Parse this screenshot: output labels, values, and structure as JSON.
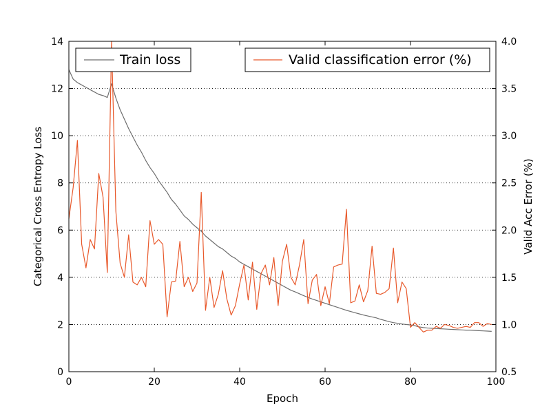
{
  "chart_data": {
    "type": "line",
    "xlabel": "Epoch",
    "ylabel_left": "Categorical Cross Entropy Loss",
    "ylabel_right": "Valid Acc Error (%)",
    "xlim": [
      0,
      100
    ],
    "ylim_left": [
      0,
      14
    ],
    "ylim_right": [
      0.5,
      4.0
    ],
    "xticks": [
      0,
      20,
      40,
      60,
      80,
      100
    ],
    "yticks_left": [
      0,
      2,
      4,
      6,
      8,
      10,
      12,
      14
    ],
    "yticks_right": [
      0.5,
      1.0,
      1.5,
      2.0,
      2.5,
      3.0,
      3.5,
      4.0
    ],
    "xtick_labels": [
      "0",
      "20",
      "40",
      "60",
      "80",
      "100"
    ],
    "ytick_labels_left": [
      "0",
      "2",
      "4",
      "6",
      "8",
      "10",
      "12",
      "14"
    ],
    "ytick_labels_right": [
      "0.5",
      "1.0",
      "1.5",
      "2.0",
      "2.5",
      "3.0",
      "3.5",
      "4.0"
    ],
    "grid": "horizontal dotted (right axis ticks)",
    "series": [
      {
        "name": "Train loss",
        "axis": "left",
        "color": "#6e6e6e",
        "x": [
          0,
          1,
          2,
          3,
          4,
          5,
          6,
          7,
          8,
          9,
          10,
          11,
          12,
          13,
          14,
          15,
          16,
          17,
          18,
          19,
          20,
          21,
          22,
          23,
          24,
          25,
          26,
          27,
          28,
          29,
          30,
          31,
          32,
          33,
          34,
          35,
          36,
          37,
          38,
          39,
          40,
          41,
          42,
          43,
          44,
          45,
          46,
          47,
          48,
          49,
          50,
          51,
          52,
          53,
          54,
          55,
          56,
          57,
          58,
          59,
          60,
          61,
          62,
          63,
          64,
          65,
          66,
          67,
          68,
          69,
          70,
          71,
          72,
          73,
          74,
          75,
          76,
          77,
          78,
          79,
          80,
          81,
          82,
          83,
          84,
          85,
          86,
          87,
          88,
          89,
          90,
          91,
          92,
          93,
          94,
          95,
          96,
          97,
          98,
          99
        ],
        "values": [
          12.8,
          12.4,
          12.25,
          12.15,
          12.05,
          11.95,
          11.85,
          11.75,
          11.7,
          11.62,
          12.2,
          11.6,
          11.1,
          10.7,
          10.3,
          9.95,
          9.6,
          9.3,
          8.95,
          8.65,
          8.4,
          8.1,
          7.85,
          7.6,
          7.3,
          7.1,
          6.85,
          6.6,
          6.45,
          6.25,
          6.1,
          5.95,
          5.75,
          5.6,
          5.45,
          5.3,
          5.2,
          5.05,
          4.9,
          4.8,
          4.65,
          4.55,
          4.45,
          4.35,
          4.25,
          4.15,
          4.05,
          3.95,
          3.85,
          3.75,
          3.65,
          3.55,
          3.45,
          3.38,
          3.3,
          3.22,
          3.15,
          3.08,
          3.02,
          2.96,
          2.9,
          2.84,
          2.78,
          2.72,
          2.66,
          2.6,
          2.55,
          2.5,
          2.45,
          2.4,
          2.36,
          2.32,
          2.28,
          2.22,
          2.17,
          2.12,
          2.08,
          2.05,
          2.02,
          2.0,
          1.98,
          1.95,
          1.9,
          1.87,
          1.85,
          1.84,
          1.83,
          1.82,
          1.81,
          1.8,
          1.79,
          1.78,
          1.77,
          1.76,
          1.76,
          1.75,
          1.74,
          1.73,
          1.72,
          1.71
        ]
      },
      {
        "name": "Valid classification error (%)",
        "axis": "right",
        "color": "#e8582a",
        "x": [
          0,
          1,
          2,
          3,
          4,
          5,
          6,
          7,
          8,
          9,
          10,
          11,
          12,
          13,
          14,
          15,
          16,
          17,
          18,
          19,
          20,
          21,
          22,
          23,
          24,
          25,
          26,
          27,
          28,
          29,
          30,
          31,
          32,
          33,
          34,
          35,
          36,
          37,
          38,
          39,
          40,
          41,
          42,
          43,
          44,
          45,
          46,
          47,
          48,
          49,
          50,
          51,
          52,
          53,
          54,
          55,
          56,
          57,
          58,
          59,
          60,
          61,
          62,
          63,
          64,
          65,
          66,
          67,
          68,
          69,
          70,
          71,
          72,
          73,
          74,
          75,
          76,
          77,
          78,
          79,
          80,
          81,
          82,
          83,
          84,
          85,
          86,
          87,
          88,
          89,
          90,
          91,
          92,
          93,
          94,
          95,
          96,
          97,
          98,
          99
        ],
        "values": [
          2.12,
          2.45,
          2.95,
          1.85,
          1.6,
          1.9,
          1.8,
          2.6,
          2.35,
          1.55,
          4.0,
          2.2,
          1.65,
          1.5,
          1.95,
          1.45,
          1.42,
          1.5,
          1.4,
          2.1,
          1.85,
          1.9,
          1.85,
          1.08,
          1.45,
          1.46,
          1.88,
          1.4,
          1.5,
          1.35,
          1.44,
          2.4,
          1.15,
          1.5,
          1.18,
          1.32,
          1.57,
          1.27,
          1.1,
          1.2,
          1.43,
          1.63,
          1.26,
          1.66,
          1.16,
          1.54,
          1.63,
          1.42,
          1.71,
          1.2,
          1.67,
          1.85,
          1.5,
          1.42,
          1.63,
          1.9,
          1.22,
          1.47,
          1.53,
          1.2,
          1.4,
          1.22,
          1.61,
          1.63,
          1.64,
          2.22,
          1.23,
          1.25,
          1.42,
          1.24,
          1.36,
          1.83,
          1.33,
          1.32,
          1.34,
          1.38,
          1.81,
          1.23,
          1.45,
          1.38,
          0.97,
          1.02,
          0.97,
          0.92,
          0.94,
          0.94,
          0.98,
          0.96,
          1.0,
          0.99,
          0.97,
          0.96,
          0.97,
          0.98,
          0.97,
          1.02,
          1.02,
          0.98,
          1.01,
          1.0
        ]
      }
    ],
    "legend": [
      {
        "label": "Train loss",
        "position": "top-left"
      },
      {
        "label": "Valid classification error (%)",
        "position": "top-right"
      }
    ]
  }
}
